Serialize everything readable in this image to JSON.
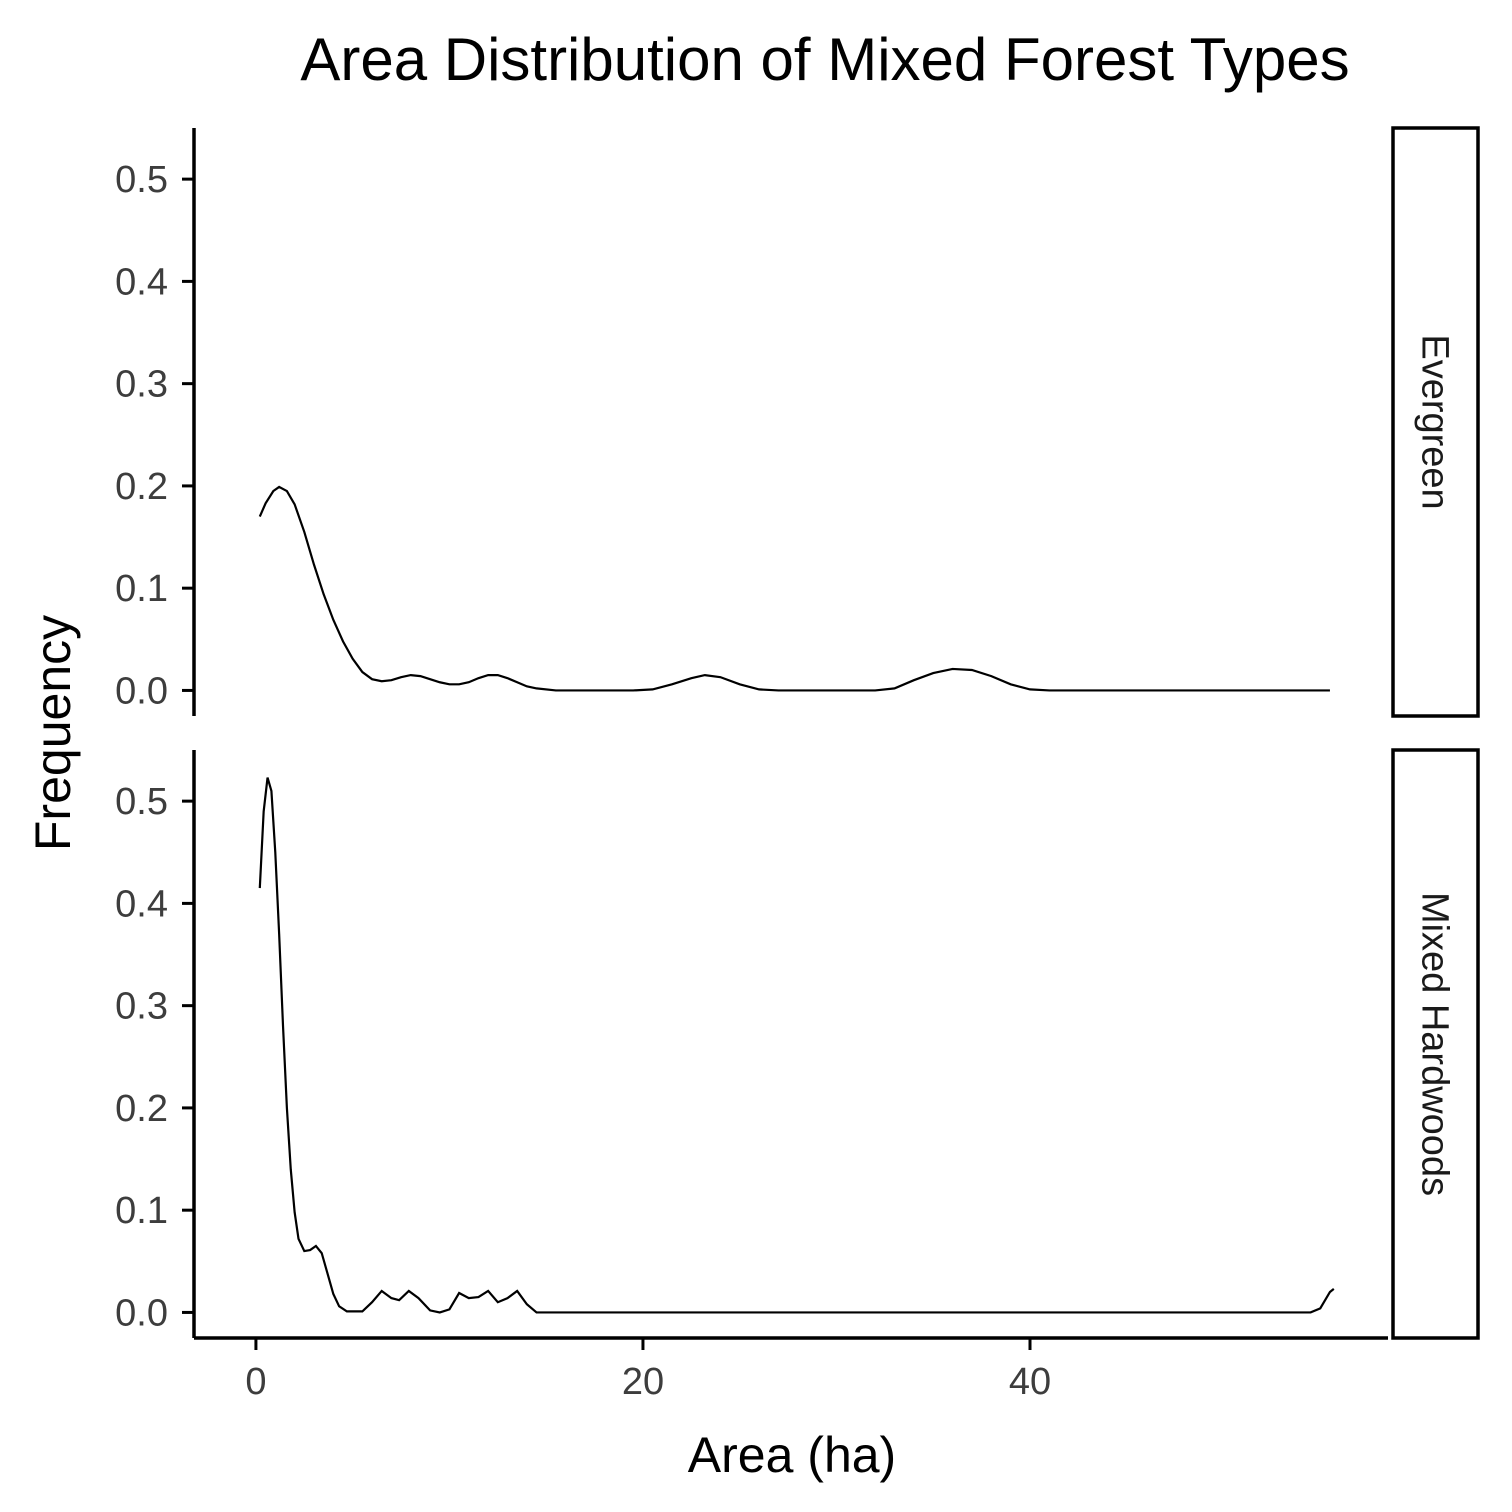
{
  "chart_data": {
    "type": "line",
    "title": "Area Distribution of Mixed Forest Types",
    "xlabel": "Area (ha)",
    "ylabel": "Frequency",
    "xlim": [
      -3.2,
      58.5
    ],
    "ylim": [
      -0.025,
      0.55
    ],
    "x_ticks": [
      0,
      20,
      40
    ],
    "y_ticks": [
      0.0,
      0.1,
      0.2,
      0.3,
      0.4,
      0.5
    ],
    "grid": false,
    "legend": "none",
    "facets": [
      {
        "label": "Evergreen",
        "points": [
          [
            0.2,
            0.17
          ],
          [
            0.5,
            0.183
          ],
          [
            0.9,
            0.195
          ],
          [
            1.2,
            0.199
          ],
          [
            1.6,
            0.195
          ],
          [
            2.0,
            0.182
          ],
          [
            2.5,
            0.155
          ],
          [
            3.0,
            0.123
          ],
          [
            3.5,
            0.094
          ],
          [
            4.0,
            0.069
          ],
          [
            4.5,
            0.048
          ],
          [
            5.0,
            0.031
          ],
          [
            5.5,
            0.018
          ],
          [
            6.0,
            0.011
          ],
          [
            6.5,
            0.009
          ],
          [
            7.0,
            0.01
          ],
          [
            7.5,
            0.013
          ],
          [
            8.0,
            0.015
          ],
          [
            8.5,
            0.014
          ],
          [
            9.0,
            0.011
          ],
          [
            9.5,
            0.008
          ],
          [
            10.0,
            0.006
          ],
          [
            10.5,
            0.006
          ],
          [
            11.0,
            0.008
          ],
          [
            11.5,
            0.012
          ],
          [
            12.0,
            0.015
          ],
          [
            12.5,
            0.015
          ],
          [
            13.0,
            0.012
          ],
          [
            13.5,
            0.008
          ],
          [
            14.0,
            0.004
          ],
          [
            14.5,
            0.002
          ],
          [
            15.5,
            0.0
          ],
          [
            19.5,
            0.0
          ],
          [
            20.5,
            0.001
          ],
          [
            21.5,
            0.006
          ],
          [
            22.5,
            0.012
          ],
          [
            23.2,
            0.015
          ],
          [
            24.0,
            0.013
          ],
          [
            25.0,
            0.006
          ],
          [
            26.0,
            0.001
          ],
          [
            27.0,
            0.0
          ],
          [
            32.0,
            0.0
          ],
          [
            33.0,
            0.002
          ],
          [
            34.0,
            0.01
          ],
          [
            35.0,
            0.017
          ],
          [
            36.0,
            0.021
          ],
          [
            37.0,
            0.02
          ],
          [
            38.0,
            0.014
          ],
          [
            39.0,
            0.006
          ],
          [
            40.0,
            0.001
          ],
          [
            41.0,
            0.0
          ],
          [
            55.5,
            0.0
          ]
        ]
      },
      {
        "label": "Mixed Hardwoods",
        "points": [
          [
            0.2,
            0.415
          ],
          [
            0.4,
            0.49
          ],
          [
            0.6,
            0.523
          ],
          [
            0.8,
            0.51
          ],
          [
            1.0,
            0.45
          ],
          [
            1.2,
            0.37
          ],
          [
            1.4,
            0.28
          ],
          [
            1.6,
            0.2
          ],
          [
            1.8,
            0.14
          ],
          [
            2.0,
            0.098
          ],
          [
            2.2,
            0.072
          ],
          [
            2.5,
            0.06
          ],
          [
            2.8,
            0.061
          ],
          [
            3.1,
            0.065
          ],
          [
            3.4,
            0.058
          ],
          [
            3.7,
            0.038
          ],
          [
            4.0,
            0.018
          ],
          [
            4.3,
            0.006
          ],
          [
            4.7,
            0.001
          ],
          [
            5.5,
            0.001
          ],
          [
            6.0,
            0.01
          ],
          [
            6.5,
            0.021
          ],
          [
            7.0,
            0.014
          ],
          [
            7.4,
            0.012
          ],
          [
            7.9,
            0.021
          ],
          [
            8.4,
            0.014
          ],
          [
            9.0,
            0.002
          ],
          [
            9.5,
            0.0
          ],
          [
            10.0,
            0.003
          ],
          [
            10.5,
            0.019
          ],
          [
            11.0,
            0.014
          ],
          [
            11.5,
            0.015
          ],
          [
            12.0,
            0.021
          ],
          [
            12.5,
            0.01
          ],
          [
            13.0,
            0.014
          ],
          [
            13.5,
            0.021
          ],
          [
            14.0,
            0.008
          ],
          [
            14.5,
            0.0
          ],
          [
            54.5,
            0.0
          ],
          [
            55.0,
            0.004
          ],
          [
            55.5,
            0.02
          ],
          [
            55.7,
            0.023
          ]
        ]
      }
    ]
  }
}
